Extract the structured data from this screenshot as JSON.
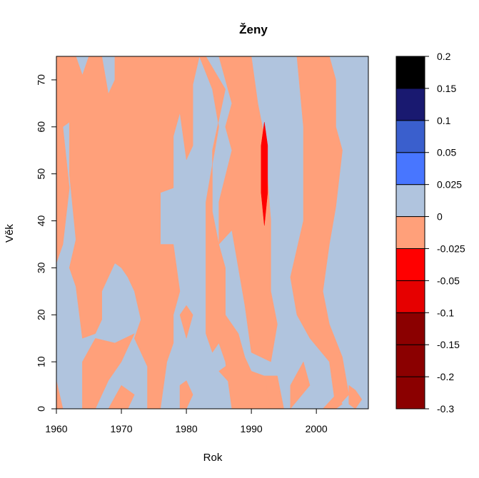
{
  "chart_data": {
    "type": "heatmap",
    "title": "Ženy",
    "xlabel": "Rok",
    "ylabel": "Věk",
    "xlim": [
      1960,
      2008
    ],
    "ylim": [
      0,
      75
    ],
    "x_ticks": [
      1960,
      1970,
      1980,
      1990,
      2000
    ],
    "x_tick_labels": [
      "1960",
      "1970",
      "1980",
      "1990",
      "2000"
    ],
    "y_ticks": [
      0,
      10,
      20,
      30,
      40,
      50,
      60,
      70
    ],
    "y_tick_labels": [
      "0",
      "10",
      "20",
      "30",
      "40",
      "50",
      "60",
      "70"
    ],
    "background_level": "0 to 0.025",
    "legend": {
      "placement": "right",
      "levels": [
        {
          "range": [
            -0.3,
            -0.2
          ],
          "color": "#8B0000"
        },
        {
          "range": [
            -0.2,
            -0.15
          ],
          "color": "#8B0000"
        },
        {
          "range": [
            -0.15,
            -0.1
          ],
          "color": "#8B0000"
        },
        {
          "range": [
            -0.1,
            -0.05
          ],
          "color": "#E60000"
        },
        {
          "range": [
            -0.05,
            -0.025
          ],
          "color": "#FF0000"
        },
        {
          "range": [
            -0.025,
            0
          ],
          "color": "#FFA07A"
        },
        {
          "range": [
            0,
            0.025
          ],
          "color": "#B0C4DE"
        },
        {
          "range": [
            0.025,
            0.05
          ],
          "color": "#4876FF"
        },
        {
          "range": [
            0.05,
            0.1
          ],
          "color": "#3A5FCD"
        },
        {
          "range": [
            0.1,
            0.15
          ],
          "color": "#191970"
        },
        {
          "range": [
            0.15,
            0.2
          ],
          "color": "#000000"
        }
      ],
      "tick_labels": [
        "-0.3",
        "-0.2",
        "-0.15",
        "-0.1",
        "-0.05",
        "-0.025",
        "0",
        "0.025",
        "0.05",
        "0.1",
        "0.15",
        "0.2"
      ]
    },
    "regions": [
      {
        "level": "-0.025 to 0",
        "color": "#FFA07A",
        "points": [
          [
            1960,
            75
          ],
          [
            1960,
            31
          ],
          [
            1961,
            35
          ],
          [
            1962,
            47
          ],
          [
            1961,
            60
          ],
          [
            1962,
            61
          ],
          [
            1962,
            50
          ],
          [
            1963,
            36
          ],
          [
            1962,
            30
          ],
          [
            1963,
            26
          ],
          [
            1964,
            15
          ],
          [
            1966,
            16
          ],
          [
            1967,
            19
          ],
          [
            1967,
            25
          ],
          [
            1969,
            31
          ],
          [
            1970,
            30
          ],
          [
            1971,
            28
          ],
          [
            1972,
            25
          ],
          [
            1973,
            19
          ],
          [
            1972,
            15
          ],
          [
            1974,
            9
          ],
          [
            1974,
            0
          ],
          [
            1976,
            0
          ],
          [
            1977,
            10
          ],
          [
            1978,
            14
          ],
          [
            1978,
            20
          ],
          [
            1979,
            25
          ],
          [
            1978,
            35
          ],
          [
            1976,
            35
          ],
          [
            1976,
            46
          ],
          [
            1978,
            47
          ],
          [
            1978,
            58
          ],
          [
            1979,
            63
          ],
          [
            1980,
            53
          ],
          [
            1981,
            56
          ],
          [
            1981,
            69
          ],
          [
            1982,
            75
          ],
          [
            1969,
            75
          ],
          [
            1969,
            70
          ],
          [
            1968,
            67
          ],
          [
            1967,
            75
          ],
          [
            1965,
            75
          ],
          [
            1964,
            71
          ],
          [
            1963,
            75
          ],
          [
            1961,
            75
          ]
        ]
      },
      {
        "level": "-0.025 to 0",
        "color": "#FFA07A",
        "points": [
          [
            1960,
            6
          ],
          [
            1961,
            0
          ],
          [
            1960,
            0
          ]
        ]
      },
      {
        "level": "-0.025 to 0",
        "color": "#FFA07A",
        "points": [
          [
            1964,
            10
          ],
          [
            1966,
            15
          ],
          [
            1969,
            14
          ],
          [
            1972,
            16
          ],
          [
            1970,
            10
          ],
          [
            1968,
            6
          ],
          [
            1966,
            0
          ],
          [
            1964,
            0
          ]
        ]
      },
      {
        "level": "-0.025 to 0",
        "color": "#FFA07A",
        "points": [
          [
            1968,
            0
          ],
          [
            1970,
            5
          ],
          [
            1972,
            3
          ],
          [
            1971,
            0
          ]
        ]
      },
      {
        "level": "-0.025 to 0",
        "color": "#FFA07A",
        "points": [
          [
            1979,
            20
          ],
          [
            1980,
            22
          ],
          [
            1981,
            20
          ],
          [
            1980,
            15
          ]
        ]
      },
      {
        "level": "-0.025 to 0",
        "color": "#FFA07A",
        "points": [
          [
            1979,
            5
          ],
          [
            1980,
            6
          ],
          [
            1981,
            3
          ],
          [
            1980,
            0
          ],
          [
            1979,
            0
          ]
        ]
      },
      {
        "level": "-0.025 to 0",
        "color": "#FFA07A",
        "points": [
          [
            1983,
            75
          ],
          [
            1986,
            68
          ],
          [
            1984,
            55
          ],
          [
            1984,
            42
          ],
          [
            1985,
            35
          ],
          [
            1986,
            30
          ],
          [
            1986,
            20
          ],
          [
            1988,
            16
          ],
          [
            1989,
            11
          ],
          [
            1990,
            8
          ],
          [
            1992,
            7
          ],
          [
            1993,
            0
          ],
          [
            1987,
            0
          ],
          [
            1986,
            10
          ],
          [
            1985,
            14
          ],
          [
            1984,
            12
          ],
          [
            1983,
            16
          ],
          [
            1983,
            20
          ],
          [
            1983,
            44
          ],
          [
            1985,
            60
          ],
          [
            1984,
            68
          ],
          [
            1982,
            75
          ]
        ]
      },
      {
        "level": "-0.025 to 0",
        "color": "#FFA07A",
        "points": [
          [
            1985,
            35
          ],
          [
            1987,
            38
          ],
          [
            1988,
            30
          ],
          [
            1989,
            22
          ],
          [
            1990,
            12
          ],
          [
            1993,
            10
          ],
          [
            1994,
            18
          ],
          [
            1993,
            25
          ],
          [
            1993,
            40
          ],
          [
            1992,
            58
          ],
          [
            1991,
            65
          ],
          [
            1990,
            75
          ],
          [
            1985,
            75
          ],
          [
            1987,
            65
          ],
          [
            1986,
            60
          ],
          [
            1987,
            55
          ],
          [
            1985,
            44
          ]
        ]
      },
      {
        "level": "-0.025 to 0",
        "color": "#FFA07A",
        "points": [
          [
            1985,
            8
          ],
          [
            1987,
            5
          ],
          [
            1988,
            8
          ],
          [
            1987,
            10
          ]
        ]
      },
      {
        "level": "-0.025 to 0",
        "color": "#FFA07A",
        "points": [
          [
            1992,
            7
          ],
          [
            1993,
            0
          ],
          [
            1995,
            0
          ],
          [
            1994,
            7
          ]
        ]
      },
      {
        "level": "-0.025 to 0",
        "color": "#FFA07A",
        "points": [
          [
            1996,
            0
          ],
          [
            1999,
            5
          ],
          [
            1998,
            10
          ],
          [
            1996,
            5
          ]
        ]
      },
      {
        "level": "-0.025 to 0",
        "color": "#FFA07A",
        "points": [
          [
            1997,
            20
          ],
          [
            1999,
            15
          ],
          [
            2002,
            10
          ],
          [
            2003,
            0
          ],
          [
            2005,
            3
          ],
          [
            2004,
            11
          ],
          [
            2002,
            18
          ],
          [
            2001,
            25
          ],
          [
            2002,
            35
          ],
          [
            2003,
            43
          ],
          [
            2004,
            55
          ],
          [
            2003,
            60
          ],
          [
            2003,
            70
          ],
          [
            2002,
            75
          ],
          [
            1997,
            75
          ],
          [
            1998,
            60
          ],
          [
            1998,
            40
          ],
          [
            1996,
            28
          ]
        ]
      },
      {
        "level": "-0.025 to 0",
        "color": "#FFA07A",
        "points": [
          [
            2005,
            5
          ],
          [
            2006,
            4
          ],
          [
            2007,
            2
          ],
          [
            2006,
            0
          ],
          [
            2005,
            1
          ]
        ]
      },
      {
        "level": "-0.025 to 0",
        "color": "#FFA07A",
        "points": [
          [
            2001,
            0
          ],
          [
            2003,
            3
          ],
          [
            2004,
            1
          ],
          [
            2003,
            0
          ]
        ]
      },
      {
        "level": "-0.05 to -0.025",
        "color": "#FF0000",
        "points": [
          [
            1991.5,
            56
          ],
          [
            1992,
            61
          ],
          [
            1992.5,
            56
          ],
          [
            1992.5,
            46
          ],
          [
            1992,
            39
          ],
          [
            1991.5,
            46
          ]
        ]
      }
    ]
  }
}
